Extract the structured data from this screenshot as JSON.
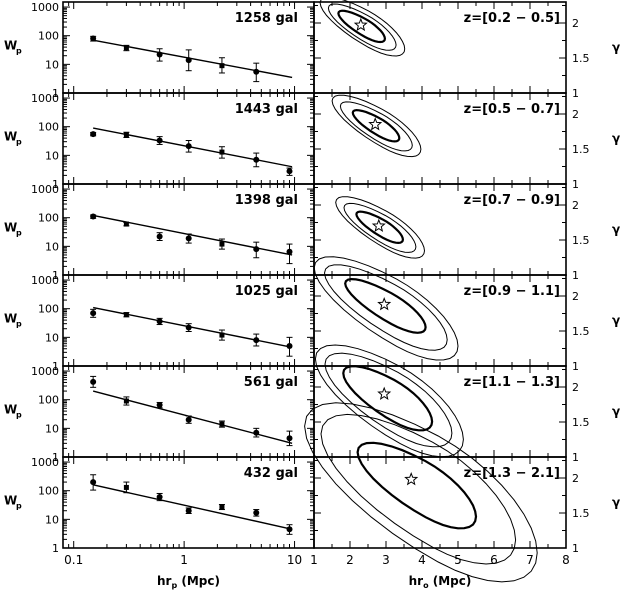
{
  "chart_data": {
    "type": "scatter",
    "left_column": {
      "xlabel": "hr",
      "xlabel_sub": "p",
      "xlabel_unit": " (Mpc)",
      "ylabel": "W",
      "ylabel_sub": "p",
      "xscale": "log",
      "yscale": "log",
      "xlim": [
        0.08,
        15
      ],
      "ylim": [
        1,
        1500
      ],
      "xticklabels": [
        "0.1",
        "1",
        "10"
      ],
      "yticklabels": [
        "1",
        "10",
        "100",
        "1000"
      ]
    },
    "right_column": {
      "xlabel": "hr",
      "xlabel_sub": "o",
      "xlabel_unit": " (Mpc)",
      "ylabel": "γ",
      "xlim": [
        1,
        8
      ],
      "ylim": [
        1,
        2.3
      ],
      "xticklabels": [
        "1",
        "2",
        "3",
        "4",
        "5",
        "6",
        "7",
        "8"
      ],
      "yticklabels": [
        "1",
        "1.5",
        "2"
      ]
    },
    "panels": [
      {
        "count_label": "1258 gal",
        "z_label": "z=[0.2 − 0.5]",
        "points": [
          {
            "x": 0.15,
            "y": 80,
            "ylo": 65,
            "yhi": 95
          },
          {
            "x": 0.3,
            "y": 38,
            "ylo": 30,
            "yhi": 46
          },
          {
            "x": 0.6,
            "y": 22,
            "ylo": 13,
            "yhi": 35
          },
          {
            "x": 1.1,
            "y": 14,
            "ylo": 6,
            "yhi": 32
          },
          {
            "x": 2.2,
            "y": 9,
            "ylo": 5,
            "yhi": 17
          },
          {
            "x": 4.5,
            "y": 5.5,
            "ylo": 2.5,
            "yhi": 11
          }
        ],
        "fit": {
          "x": [
            0.15,
            9.5
          ],
          "y": [
            70,
            3.5
          ]
        },
        "best_fit": {
          "r0": 2.3,
          "gamma": 1.97
        },
        "contours": [
          {
            "dx": 0.12,
            "dy": 0.04,
            "rx": 0.55,
            "ry": 0.13
          },
          {
            "dx": 0.18,
            "dy": 0.06,
            "rx": 0.8,
            "ry": 0.2
          },
          {
            "dx": 0.22,
            "dy": 0.06,
            "rx": 1.0,
            "ry": 0.26
          }
        ]
      },
      {
        "count_label": "1443 gal",
        "z_label": "z=[0.5 − 0.7]",
        "points": [
          {
            "x": 0.15,
            "y": 55,
            "ylo": 48,
            "yhi": 63
          },
          {
            "x": 0.3,
            "y": 52,
            "ylo": 42,
            "yhi": 64
          },
          {
            "x": 0.6,
            "y": 33,
            "ylo": 24,
            "yhi": 45
          },
          {
            "x": 1.1,
            "y": 21,
            "ylo": 13,
            "yhi": 33
          },
          {
            "x": 2.2,
            "y": 13,
            "ylo": 8,
            "yhi": 20
          },
          {
            "x": 4.5,
            "y": 7,
            "ylo": 4,
            "yhi": 12
          },
          {
            "x": 9,
            "y": 2.8,
            "ylo": 2,
            "yhi": 3.6
          }
        ],
        "fit": {
          "x": [
            0.15,
            9.5
          ],
          "y": [
            90,
            4
          ]
        },
        "best_fit": {
          "r0": 2.7,
          "gamma": 1.85
        },
        "contours": [
          {
            "dx": 0.12,
            "dy": 0.04,
            "rx": 0.55,
            "ry": 0.13
          },
          {
            "dx": 0.18,
            "dy": 0.06,
            "rx": 0.85,
            "ry": 0.21
          },
          {
            "dx": 0.22,
            "dy": 0.06,
            "rx": 1.05,
            "ry": 0.27
          }
        ]
      },
      {
        "count_label": "1398 gal",
        "z_label": "z=[0.7 − 0.9]",
        "points": [
          {
            "x": 0.15,
            "y": 110,
            "ylo": 95,
            "yhi": 125
          },
          {
            "x": 0.3,
            "y": 60,
            "ylo": 52,
            "yhi": 68
          },
          {
            "x": 0.6,
            "y": 22,
            "ylo": 16,
            "yhi": 30
          },
          {
            "x": 1.1,
            "y": 19,
            "ylo": 13,
            "yhi": 27
          },
          {
            "x": 2.2,
            "y": 12,
            "ylo": 8,
            "yhi": 18
          },
          {
            "x": 4.5,
            "y": 8,
            "ylo": 4,
            "yhi": 14
          },
          {
            "x": 9,
            "y": 6.5,
            "ylo": 2.5,
            "yhi": 12
          }
        ],
        "fit": {
          "x": [
            0.15,
            9.5
          ],
          "y": [
            120,
            5
          ]
        },
        "best_fit": {
          "r0": 2.8,
          "gamma": 1.7
        },
        "contours": [
          {
            "dx": 0.12,
            "dy": 0.04,
            "rx": 0.55,
            "ry": 0.13
          },
          {
            "dx": 0.18,
            "dy": 0.06,
            "rx": 0.85,
            "ry": 0.21
          },
          {
            "dx": 0.22,
            "dy": 0.06,
            "rx": 1.05,
            "ry": 0.27
          }
        ]
      },
      {
        "count_label": "1025 gal",
        "z_label": "z=[0.9 − 1.1]",
        "points": [
          {
            "x": 0.15,
            "y": 70,
            "ylo": 50,
            "yhi": 95
          },
          {
            "x": 0.3,
            "y": 62,
            "ylo": 52,
            "yhi": 73
          },
          {
            "x": 0.6,
            "y": 36,
            "ylo": 28,
            "yhi": 46
          },
          {
            "x": 1.1,
            "y": 22,
            "ylo": 16,
            "yhi": 30
          },
          {
            "x": 2.2,
            "y": 12,
            "ylo": 8,
            "yhi": 18
          },
          {
            "x": 4.5,
            "y": 8,
            "ylo": 5,
            "yhi": 13
          },
          {
            "x": 9,
            "y": 5,
            "ylo": 2.2,
            "yhi": 10
          }
        ],
        "fit": {
          "x": [
            0.15,
            9.5
          ],
          "y": [
            110,
            4.5
          ]
        },
        "best_fit": {
          "r0": 2.95,
          "gamma": 1.88
        },
        "contours": [
          {
            "dx": 0.2,
            "dy": 0.06,
            "rx": 0.95,
            "ry": 0.22
          },
          {
            "dx": 0.3,
            "dy": 0.1,
            "rx": 1.45,
            "ry": 0.38
          },
          {
            "dx": 0.35,
            "dy": 0.12,
            "rx": 1.7,
            "ry": 0.48
          }
        ]
      },
      {
        "count_label": "561 gal",
        "z_label": "z=[1.1 − 1.3]",
        "points": [
          {
            "x": 0.15,
            "y": 420,
            "ylo": 270,
            "yhi": 650
          },
          {
            "x": 0.3,
            "y": 90,
            "ylo": 65,
            "yhi": 125
          },
          {
            "x": 0.6,
            "y": 65,
            "ylo": 52,
            "yhi": 80
          },
          {
            "x": 1.1,
            "y": 20,
            "ylo": 15,
            "yhi": 27
          },
          {
            "x": 2.2,
            "y": 14,
            "ylo": 11,
            "yhi": 18
          },
          {
            "x": 4.5,
            "y": 7,
            "ylo": 5,
            "yhi": 10
          },
          {
            "x": 9,
            "y": 4.5,
            "ylo": 2.5,
            "yhi": 8
          }
        ],
        "fit": {
          "x": [
            0.15,
            9.5
          ],
          "y": [
            200,
            3
          ]
        },
        "best_fit": {
          "r0": 2.95,
          "gamma": 1.9
        },
        "contours": [
          {
            "dx": 0.28,
            "dy": 0.1,
            "rx": 1.05,
            "ry": 0.3
          },
          {
            "dx": 0.38,
            "dy": 0.14,
            "rx": 1.5,
            "ry": 0.45
          },
          {
            "dx": 0.45,
            "dy": 0.16,
            "rx": 1.75,
            "ry": 0.55
          }
        ]
      },
      {
        "count_label": "432 gal",
        "z_label": "z=[1.3 − 2.1]",
        "points": [
          {
            "x": 0.15,
            "y": 200,
            "ylo": 105,
            "yhi": 360
          },
          {
            "x": 0.3,
            "y": 130,
            "ylo": 85,
            "yhi": 200
          },
          {
            "x": 0.6,
            "y": 60,
            "ylo": 45,
            "yhi": 80
          },
          {
            "x": 1.1,
            "y": 20,
            "ylo": 16,
            "yhi": 25
          },
          {
            "x": 2.2,
            "y": 27,
            "ylo": 22,
            "yhi": 33
          },
          {
            "x": 4.5,
            "y": 17,
            "ylo": 13,
            "yhi": 22
          },
          {
            "x": 9,
            "y": 4.5,
            "ylo": 3,
            "yhi": 6.5
          }
        ],
        "fit": {
          "x": [
            0.15,
            9.5
          ],
          "y": [
            160,
            4.5
          ]
        },
        "best_fit": {
          "r0": 3.7,
          "gamma": 1.98
        },
        "contours": [
          {
            "dx": 0.4,
            "dy": 0.14,
            "rx": 1.4,
            "ry": 0.4
          },
          {
            "dx": 0.6,
            "dy": 0.22,
            "rx": 2.3,
            "ry": 0.75
          },
          {
            "dx": 0.75,
            "dy": 0.28,
            "rx": 2.75,
            "ry": 0.9
          }
        ]
      }
    ]
  }
}
